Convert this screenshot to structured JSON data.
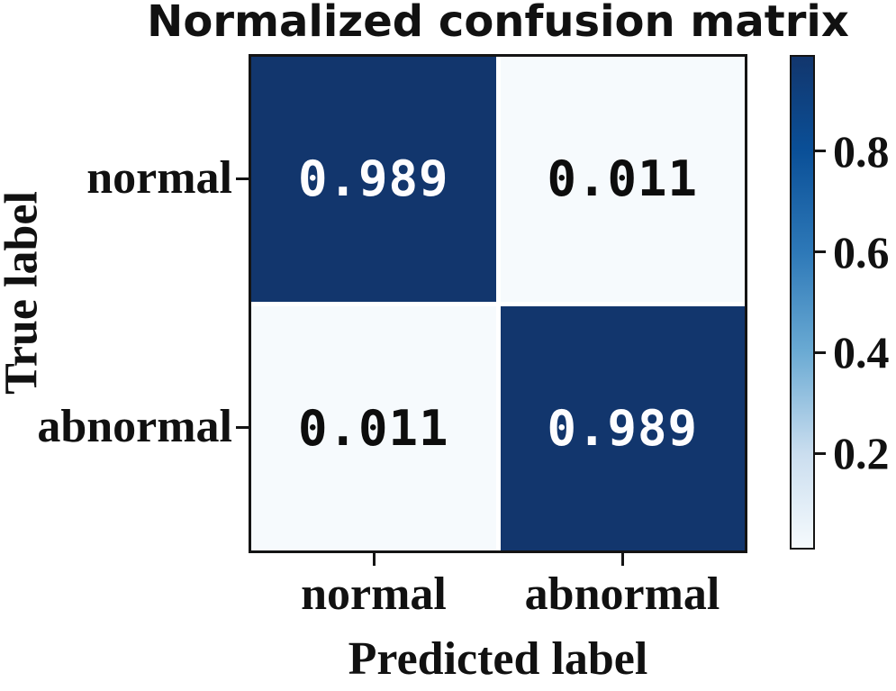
{
  "chart_data": {
    "type": "heatmap",
    "title": "Normalized confusion matrix",
    "xlabel": "Predicted label",
    "ylabel": "True label",
    "x_categories": [
      "normal",
      "abnormal"
    ],
    "y_categories": [
      "normal",
      "abnormal"
    ],
    "matrix": [
      [
        0.989,
        0.011
      ],
      [
        0.011,
        0.989
      ]
    ],
    "cell_labels": [
      [
        "0.989",
        "0.011"
      ],
      [
        "0.011",
        "0.989"
      ]
    ],
    "colormap": "Blues",
    "colorbar_position": "right",
    "colorbar_ticks": [
      "0.8",
      "0.6",
      "0.4",
      "0.2"
    ],
    "colorbar_range": [
      0.011,
      0.989
    ],
    "grid": false,
    "legend": false,
    "colors": {
      "cell_high": "#12366d",
      "cell_low": "#f6fafd",
      "text_on_high": "#fdfdff",
      "text_on_low": "#0d0d0d",
      "axis": "#141414",
      "colorbar_gradient": [
        "#12366d",
        "#0a4f97",
        "#2e79b8",
        "#6aaad3",
        "#cbdeef",
        "#f5fafd"
      ]
    }
  }
}
